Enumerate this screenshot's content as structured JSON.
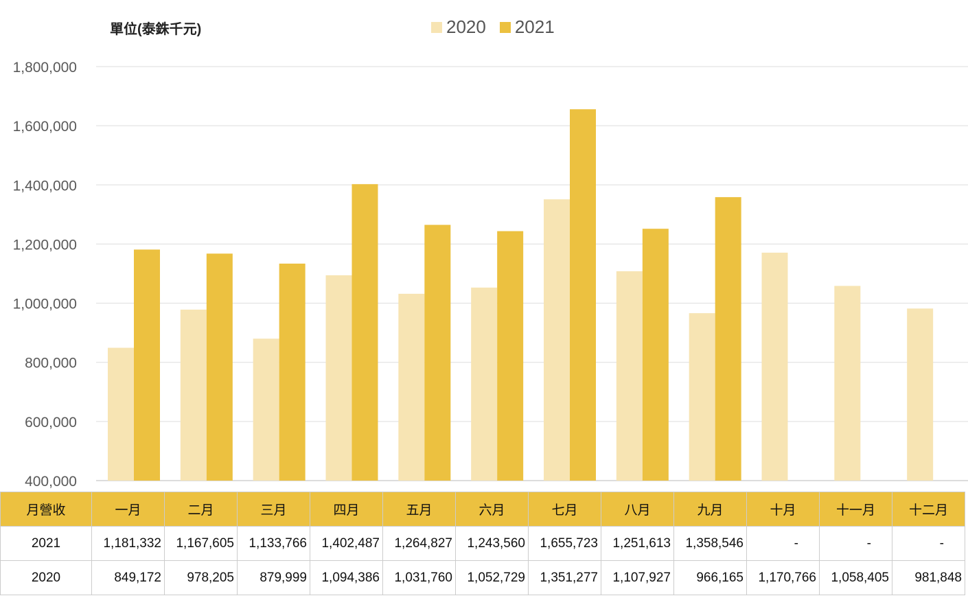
{
  "unit_label": "單位(泰銖千元)",
  "colors": {
    "y2020": "#f7e4b3",
    "y2021": "#ecc140",
    "header_bg": "#ecc140"
  },
  "chart_data": {
    "type": "bar",
    "categories": [
      "一月",
      "二月",
      "三月",
      "四月",
      "五月",
      "六月",
      "七月",
      "八月",
      "九月",
      "十月",
      "十一月",
      "十二月"
    ],
    "series": [
      {
        "name": "2020",
        "values": [
          849172,
          978205,
          879999,
          1094386,
          1031760,
          1052729,
          1351277,
          1107927,
          966165,
          1170766,
          1058405,
          981848
        ]
      },
      {
        "name": "2021",
        "values": [
          1181332,
          1167605,
          1133766,
          1402487,
          1264827,
          1243560,
          1655723,
          1251613,
          1358546,
          null,
          null,
          null
        ]
      }
    ],
    "ylim": [
      400000,
      1800000
    ],
    "yticks": [
      "400,000",
      "600,000",
      "800,000",
      "1,000,000",
      "1,200,000",
      "1,400,000",
      "1,600,000",
      "1,800,000"
    ],
    "grid": true,
    "legend_position": "top"
  },
  "table": {
    "corner_label": "月營收",
    "months": [
      "一月",
      "二月",
      "三月",
      "四月",
      "五月",
      "六月",
      "七月",
      "八月",
      "九月",
      "十月",
      "十一月",
      "十二月"
    ],
    "rows": [
      {
        "label": "2021",
        "values": [
          "1,181,332",
          "1,167,605",
          "1,133,766",
          "1,402,487",
          "1,264,827",
          "1,243,560",
          "1,655,723",
          "1,251,613",
          "1,358,546",
          "-",
          "-",
          "-"
        ]
      },
      {
        "label": "2020",
        "values": [
          "849,172",
          "978,205",
          "879,999",
          "1,094,386",
          "1,031,760",
          "1,052,729",
          "1,351,277",
          "1,107,927",
          "966,165",
          "1,170,766",
          "1,058,405",
          "981,848"
        ]
      }
    ]
  }
}
